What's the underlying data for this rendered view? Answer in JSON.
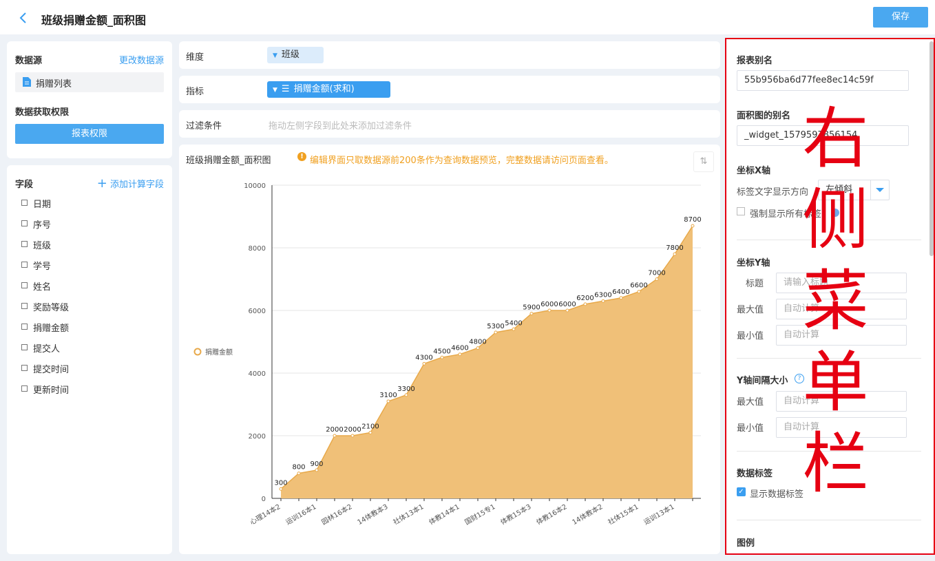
{
  "header": {
    "title": "班级捐赠金额_面积图",
    "save": "保存"
  },
  "data_source": {
    "title": "数据源",
    "change": "更改数据源",
    "table": "捐赠列表",
    "permission_title": "数据获取权限",
    "permission_button": "报表权限"
  },
  "fields": {
    "title": "字段",
    "add": "添加计算字段",
    "items": [
      "日期",
      "序号",
      "班级",
      "学号",
      "姓名",
      "奖励等级",
      "捐赠金额",
      "提交人",
      "提交时间",
      "更新时间"
    ]
  },
  "config": {
    "dimension_label": "维度",
    "dimension_value": "班级",
    "metric_label": "指标",
    "metric_value": "捐赠金额(求和)",
    "filter_label": "过滤条件",
    "filter_placeholder": "拖动左侧字段到此处来添加过滤条件"
  },
  "chart_panel": {
    "title": "班级捐赠金额_面积图",
    "notice": "编辑界面只取数据源前200条作为查询数据预览，完整数据请访问页面查看。"
  },
  "chart_data": {
    "type": "area",
    "categories": [
      "心理14本2",
      null,
      "运训16本1",
      null,
      "园林16本2",
      null,
      "14体教本3",
      null,
      "社体13本1",
      null,
      "体教14本1",
      null,
      "国财15专1",
      null,
      "体教15本3",
      null,
      "体教16本2",
      null,
      "14体教本2",
      null,
      "社体15本1",
      null,
      "运训13本1",
      null
    ],
    "series": [
      {
        "name": "捐赠金额",
        "color": "#f0c078",
        "line_color": "#e8a94a",
        "values": [
          300,
          800,
          900,
          2000,
          2000,
          2100,
          3100,
          3300,
          4300,
          4500,
          4600,
          4800,
          5300,
          5400,
          5900,
          6000,
          6000,
          6200,
          6300,
          6400,
          6600,
          7000,
          7800,
          8700
        ]
      }
    ],
    "ylim": [
      0,
      10000
    ],
    "yticks": [
      0,
      2000,
      4000,
      6000,
      8000,
      10000
    ],
    "grid": true,
    "legend": "left"
  },
  "settings": {
    "alias_label": "报表别名",
    "alias_value": "55b956ba6d77fee8ec14c59f",
    "chart_alias_label": "面积图的别名",
    "chart_alias_value": "_widget_1579597856154",
    "x_axis": {
      "title": "坐标X轴",
      "direction_label": "标签文字显示方向",
      "direction_value": "左倾斜",
      "force_label": "强制显示所有标签"
    },
    "y_axis": {
      "title": "坐标Y轴",
      "title_label": "标题",
      "title_placeholder": "请输入标题",
      "max_label": "最大值",
      "max_placeholder": "自动计算",
      "min_label": "最小值",
      "min_placeholder": "自动计算"
    },
    "y_interval": {
      "title": "Y轴间隔大小",
      "max_label": "最大值",
      "max_placeholder": "自动计算",
      "min_label": "最小值",
      "min_placeholder": "自动计算"
    },
    "data_label": {
      "title": "数据标签",
      "show_label": "显示数据标签"
    },
    "legend": {
      "title": "图例"
    }
  },
  "annotation": "右侧菜单栏"
}
